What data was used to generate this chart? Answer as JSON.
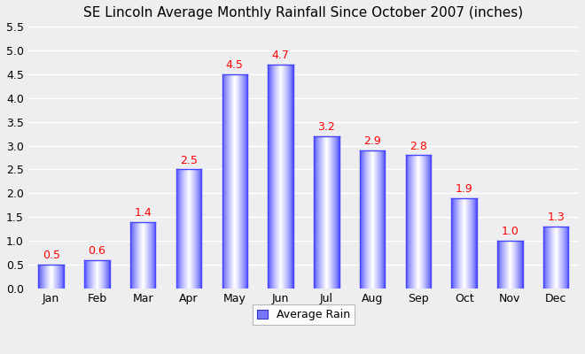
{
  "title": "SE Lincoln Average Monthly Rainfall Since October 2007 (inches)",
  "months": [
    "Jan",
    "Feb",
    "Mar",
    "Apr",
    "May",
    "Jun",
    "Jul",
    "Aug",
    "Sep",
    "Oct",
    "Nov",
    "Dec"
  ],
  "values": [
    0.5,
    0.6,
    1.4,
    2.5,
    4.5,
    4.7,
    3.2,
    2.9,
    2.8,
    1.9,
    1.0,
    1.3
  ],
  "ylim": [
    0,
    5.5
  ],
  "yticks": [
    0.0,
    0.5,
    1.0,
    1.5,
    2.0,
    2.5,
    3.0,
    3.5,
    4.0,
    4.5,
    5.0,
    5.5
  ],
  "bar_color_dark_r": 0.27,
  "bar_color_dark_g": 0.27,
  "bar_color_dark_b": 1.0,
  "bar_color_light_r": 0.88,
  "bar_color_light_g": 0.88,
  "bar_color_light_b": 1.0,
  "bar_color_white_r": 1.0,
  "bar_color_white_g": 1.0,
  "bar_color_white_b": 1.0,
  "label_color": "#ff0000",
  "legend_label": "Average Rain",
  "legend_face_color": "#7777ff",
  "background_color": "#eeeef0",
  "plot_bg_color": "#eeeef0",
  "grid_color": "#ffffff",
  "title_fontsize": 11,
  "label_fontsize": 9,
  "tick_fontsize": 9,
  "bar_width": 0.55,
  "n_gradient_steps": 60
}
